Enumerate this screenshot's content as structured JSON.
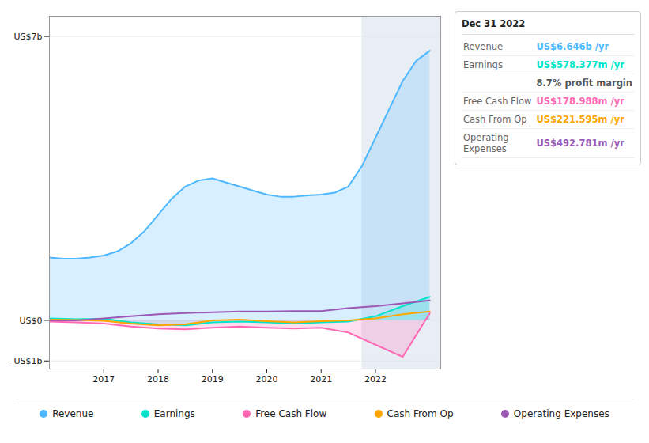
{
  "chart_data": {
    "type": "line",
    "xlim": [
      2016.0,
      2023.2
    ],
    "xticks": [
      2017,
      2018,
      2019,
      2020,
      2021,
      2022
    ],
    "ylim": [
      -1200000000.0,
      7500000000.0
    ],
    "yticks": [
      {
        "value": 7000000000.0,
        "label": "US$7b"
      },
      {
        "value": 0,
        "label": "US$0"
      },
      {
        "value": -1000000000.0,
        "label": "-US$1b"
      }
    ],
    "grid": true,
    "legend": "bottom",
    "series": [
      {
        "name": "Revenue",
        "color": "#4db8ff",
        "type": "area",
        "x": [
          2016.0,
          2016.25,
          2016.5,
          2016.75,
          2017.0,
          2017.25,
          2017.5,
          2017.75,
          2018.0,
          2018.25,
          2018.5,
          2018.75,
          2019.0,
          2019.25,
          2019.5,
          2019.75,
          2020.0,
          2020.25,
          2020.5,
          2020.75,
          2021.0,
          2021.25,
          2021.5,
          2021.75,
          2022.0,
          2022.25,
          2022.5,
          2022.75,
          2023.0
        ],
        "values": [
          1550000000.0,
          1520000000.0,
          1520000000.0,
          1550000000.0,
          1600000000.0,
          1700000000.0,
          1900000000.0,
          2200000000.0,
          2600000000.0,
          3000000000.0,
          3300000000.0,
          3450000000.0,
          3500000000.0,
          3400000000.0,
          3300000000.0,
          3200000000.0,
          3100000000.0,
          3050000000.0,
          3050000000.0,
          3080000000.0,
          3100000000.0,
          3150000000.0,
          3300000000.0,
          3800000000.0,
          4500000000.0,
          5200000000.0,
          5900000000.0,
          6400000000.0,
          6650000000.0
        ]
      },
      {
        "name": "Earnings",
        "color": "#00e5cc",
        "type": "area",
        "x": [
          2016.0,
          2016.5,
          2017.0,
          2017.5,
          2018.0,
          2018.5,
          2019.0,
          2019.5,
          2020.0,
          2020.5,
          2021.0,
          2021.5,
          2022.0,
          2022.5,
          2023.0
        ],
        "values": [
          50000000.0,
          30000000.0,
          40000000.0,
          -50000000.0,
          -100000000.0,
          -120000000.0,
          -50000000.0,
          -30000000.0,
          -50000000.0,
          -80000000.0,
          -50000000.0,
          -30000000.0,
          100000000.0,
          350000000.0,
          580000000.0
        ]
      },
      {
        "name": "Free Cash Flow",
        "color": "#ff69b4",
        "type": "area",
        "x": [
          2016.0,
          2016.5,
          2017.0,
          2017.5,
          2018.0,
          2018.5,
          2019.0,
          2019.5,
          2020.0,
          2020.5,
          2021.0,
          2021.5,
          2022.0,
          2022.5,
          2023.0
        ],
        "values": [
          -30000000.0,
          -50000000.0,
          -80000000.0,
          -150000000.0,
          -200000000.0,
          -220000000.0,
          -180000000.0,
          -150000000.0,
          -180000000.0,
          -200000000.0,
          -180000000.0,
          -300000000.0,
          -600000000.0,
          -900000000.0,
          180000000.0
        ]
      },
      {
        "name": "Cash From Op",
        "color": "#ffa500",
        "type": "line",
        "x": [
          2016.0,
          2016.5,
          2017.0,
          2017.5,
          2018.0,
          2018.5,
          2019.0,
          2019.5,
          2020.0,
          2020.5,
          2021.0,
          2021.5,
          2022.0,
          2022.5,
          2023.0
        ],
        "values": [
          20000000.0,
          10000000.0,
          -10000000.0,
          -80000000.0,
          -120000000.0,
          -100000000.0,
          0.0,
          20000000.0,
          -20000000.0,
          -50000000.0,
          -20000000.0,
          0.0,
          50000000.0,
          150000000.0,
          220000000.0
        ]
      },
      {
        "name": "Operating Expenses",
        "color": "#9b59b6",
        "type": "line",
        "x": [
          2016.0,
          2016.5,
          2017.0,
          2017.5,
          2018.0,
          2018.5,
          2019.0,
          2019.5,
          2020.0,
          2020.5,
          2021.0,
          2021.5,
          2022.0,
          2022.5,
          2023.0
        ],
        "values": [
          0.0,
          0.0,
          50000000.0,
          100000000.0,
          150000000.0,
          180000000.0,
          200000000.0,
          220000000.0,
          220000000.0,
          230000000.0,
          230000000.0,
          300000000.0,
          350000000.0,
          420000000.0,
          490000000.0
        ]
      }
    ],
    "annotations": [
      {
        "text": "Dec 31 2022"
      },
      {
        "label": "Revenue",
        "text": "US$6.646b /yr"
      },
      {
        "label": "Earnings",
        "text": "US$578.377m /yr"
      },
      {
        "text": "8.7% profit margin"
      },
      {
        "label": "Free Cash Flow",
        "text": "US$178.988m /yr"
      },
      {
        "label": "Cash From Op",
        "text": "US$221.595m /yr"
      },
      {
        "label": "Operating Expenses",
        "text": "US$492.781m /yr"
      },
      {
        "type": "span",
        "x": [
          2021.75,
          2023.2
        ]
      }
    ]
  }
}
